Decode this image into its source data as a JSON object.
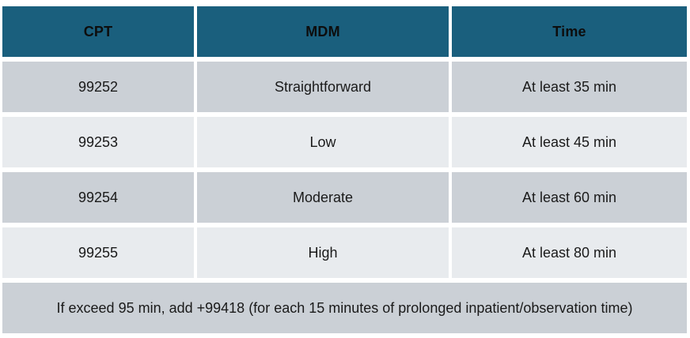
{
  "colors": {
    "header_bg": "#1a5f7d",
    "header_text": "#0d0d0d",
    "row_dark_bg": "#cbd0d6",
    "row_light_bg": "#e8ebee",
    "body_text": "#1a1a1a",
    "divider": "#ffffff"
  },
  "table": {
    "headers": {
      "cpt": "CPT",
      "mdm": "MDM",
      "time": "Time"
    },
    "rows": [
      {
        "cpt": "99252",
        "mdm": "Straightforward",
        "time": "At least 35 min"
      },
      {
        "cpt": "99253",
        "mdm": "Low",
        "time": "At least 45 min"
      },
      {
        "cpt": "99254",
        "mdm": "Moderate",
        "time": "At least 60 min"
      },
      {
        "cpt": "99255",
        "mdm": "High",
        "time": "At least 80 min"
      }
    ],
    "footer_note": "If exceed 95 min, add +99418 (for each 15 minutes of prolonged inpatient/observation time)"
  },
  "chart_data": {
    "type": "table",
    "title": "",
    "columns": [
      "CPT",
      "MDM",
      "Time"
    ],
    "rows": [
      [
        "99252",
        "Straightforward",
        "At least 35 min"
      ],
      [
        "99253",
        "Low",
        "At least 45 min"
      ],
      [
        "99254",
        "Moderate",
        "At least 60 min"
      ],
      [
        "99255",
        "High",
        "At least 80 min"
      ]
    ],
    "footnote": "If exceed 95 min, add +99418 (for each 15 minutes of prolonged inpatient/observation time)",
    "layout_hints": {
      "header_style": "teal background, bold black text, centered",
      "row_striping": "alternating gray (dark, light)",
      "footnote_row": "merged across all columns, dark gray background"
    }
  }
}
